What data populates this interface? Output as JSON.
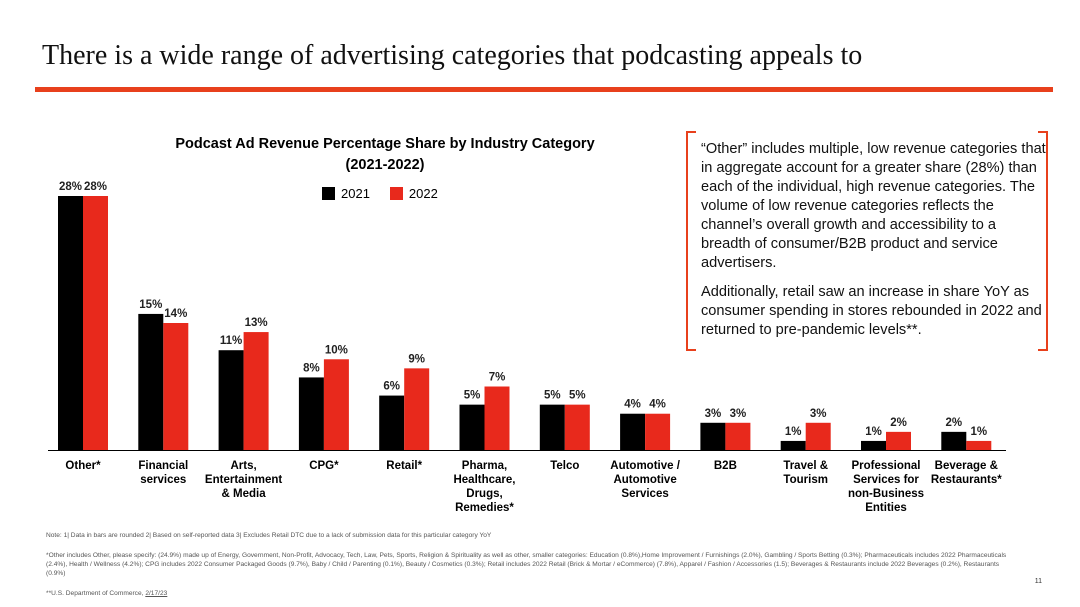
{
  "page_title": "There is a wide range of advertising categories that podcasting appeals to",
  "colors": {
    "accent": "#e8401c",
    "series_2021": "#000000",
    "series_2022": "#e8291c"
  },
  "chart_data": {
    "type": "bar",
    "title_line1": "Podcast Ad Revenue Percentage Share by Industry Category",
    "title_line2": "(2021-2022)",
    "categories": [
      "Other*",
      "Financial\nservices",
      "Arts,\nEntertainment\n& Media",
      "CPG*",
      "Retail*",
      "Pharma,\nHealthcare,\nDrugs,\nRemedies*",
      "Telco",
      "Automotive /\nAutomotive\nServices",
      "B2B",
      "Travel &\nTourism",
      "Professional\nServices for\nnon-Business\nEntities",
      "Beverage &\nRestaurants*"
    ],
    "series": [
      {
        "name": "2021",
        "values": [
          28,
          15,
          11,
          8,
          6,
          5,
          5,
          4,
          3,
          1,
          1,
          2
        ]
      },
      {
        "name": "2022",
        "values": [
          28,
          14,
          13,
          10,
          9,
          7,
          5,
          4,
          3,
          3,
          2,
          1
        ]
      }
    ],
    "value_suffix": "%",
    "ylim": [
      0,
      30
    ],
    "legend_position": "top-center",
    "grid": false
  },
  "callout": {
    "paragraph1": "“Other” includes multiple, low revenue categories that in aggregate account for a greater share (28%) than each of the individual, high revenue categories. The volume of low revenue categories reflects the channel’s overall growth and accessibility to a breadth of consumer/B2B product and service advertisers.",
    "paragraph2": "Additionally, retail saw an increase in share YoY as consumer spending in stores rebounded in 2022 and returned to pre-pandemic levels**."
  },
  "notes": {
    "note1": "Note: 1| Data in bars are rounded  2| Based on self-reported data  3| Excludes Retail DTC due to a lack of submission data for this particular category YoY",
    "note2": "*Other includes Other, please specify: (24.9%) made up of Energy, Government, Non-Profit, Advocacy, Tech, Law, Pets, Sports, Religion & Spirituality as well as other, smaller categories: Education (0.8%),Home Improvement / Furnishings (2.0%), Gambling / Sports Betting (0.3%); Pharmaceuticals includes 2022 Pharmaceuticals (2.4%), Health / Wellness (4.2%); CPG includes 2022 Consumer Packaged Goods (9.7%), Baby / Child / Parenting (0.1%), Beauty / Cosmetics (0.3%); Retail includes 2022 Retail (Brick & Mortar / eCommerce) (7.8%), Apparel / Fashion / Accessories (1.5); Beverages & Restaurants include 2022 Beverages (0.2%), Restaurants (0.9%)",
    "note3_prefix": "**U.S. Department of Commerce, ",
    "note3_date": "2/17/23"
  },
  "page_number": "11"
}
